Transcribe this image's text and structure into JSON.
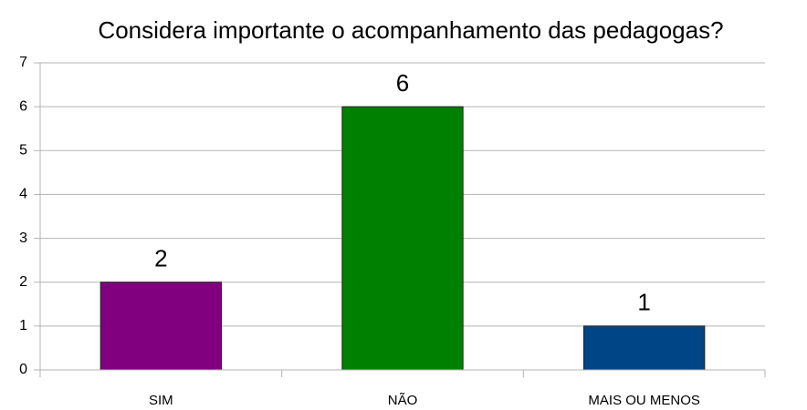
{
  "chart_data": {
    "type": "bar",
    "title": "Considera importante o acompanhamento das pedagogas?",
    "categories": [
      "SIM",
      "NÃO",
      "MAIS OU MENOS"
    ],
    "values": [
      2,
      6,
      1
    ],
    "colors": [
      "#800080",
      "#008000",
      "#004586"
    ],
    "ylim": [
      0,
      7
    ],
    "yticks": [
      0,
      1,
      2,
      3,
      4,
      5,
      6,
      7
    ],
    "grid": true
  }
}
